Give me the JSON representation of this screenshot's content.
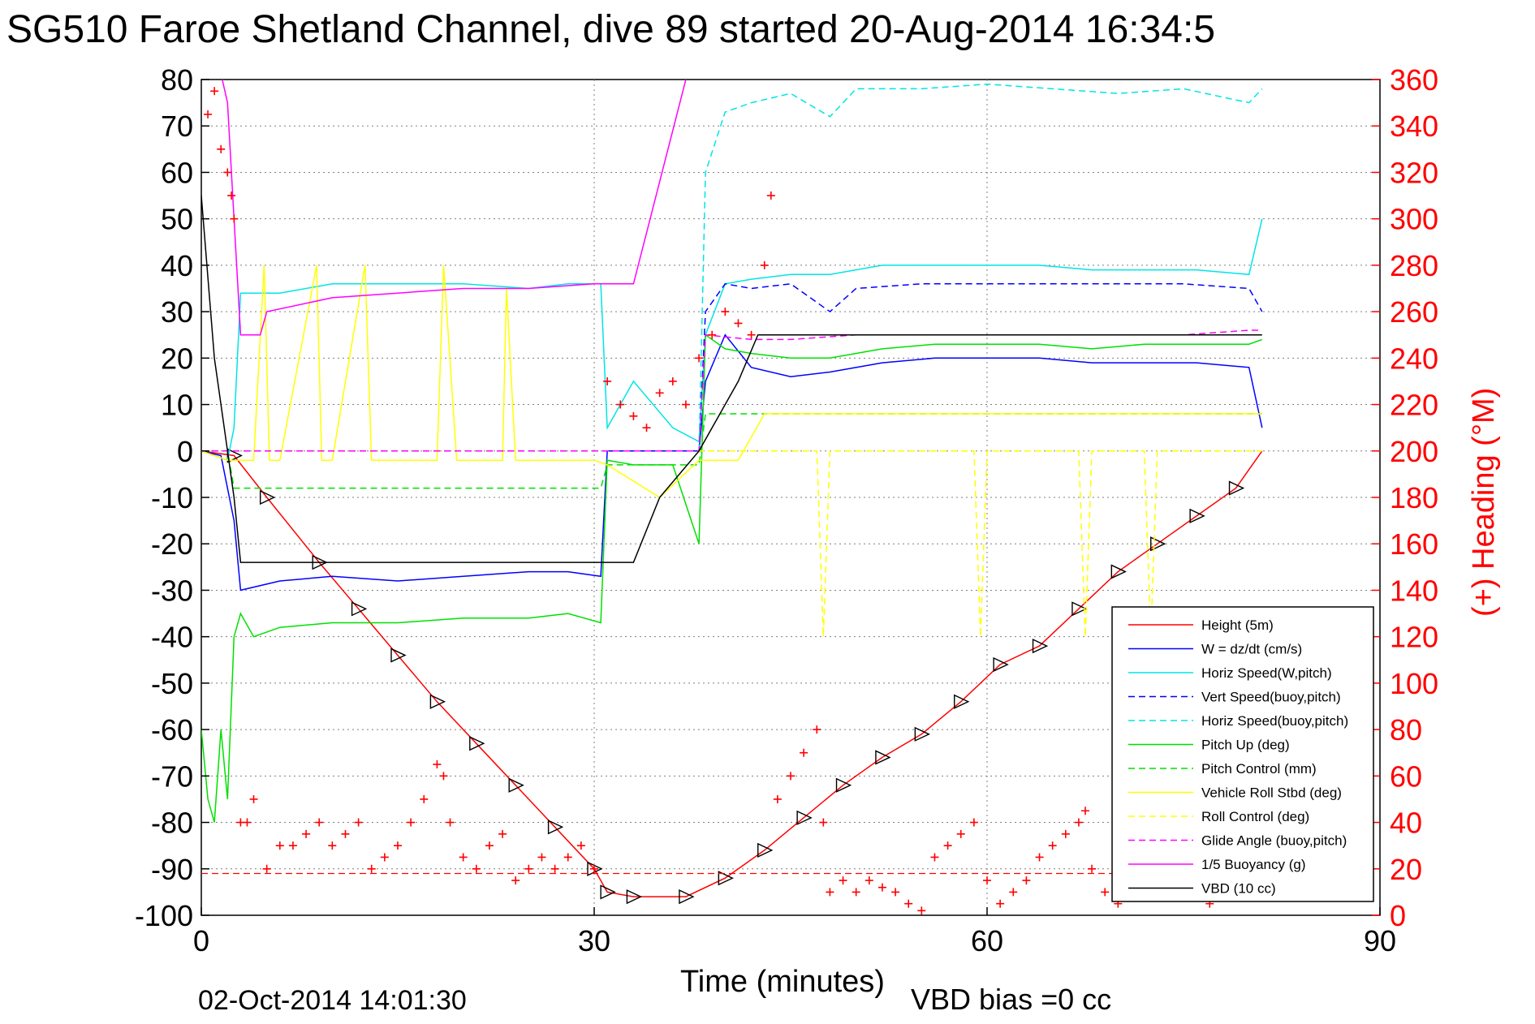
{
  "chart_data": {
    "type": "line",
    "title": "SG510 Faroe Shetland Channel, dive 89 started 20-Aug-2014 16:34:5",
    "xlabel": "Time (minutes)",
    "ylabel_right": "(+) Heading (°M)",
    "footer_date": "02-Oct-2014 14:01:30",
    "footer_vbd": "VBD bias =0 cc",
    "xlim": [
      0,
      90
    ],
    "ylim": [
      -100,
      80
    ],
    "ylim_right": [
      0,
      360
    ],
    "xticks": [
      "0",
      "30",
      "60",
      "90"
    ],
    "yticks": [
      "80",
      "70",
      "60",
      "50",
      "40",
      "30",
      "20",
      "10",
      "0",
      "-10",
      "-20",
      "-30",
      "-40",
      "-50",
      "-60",
      "-70",
      "-80",
      "-90",
      "-100"
    ],
    "yticks_right": [
      "360",
      "340",
      "320",
      "300",
      "280",
      "260",
      "240",
      "220",
      "200",
      "180",
      "160",
      "140",
      "120",
      "100",
      "80",
      "60",
      "40",
      "20",
      "0"
    ],
    "grid": true,
    "legend_position": "bottom-right",
    "series": [
      {
        "name": "Height (5m)",
        "color": "#ff0000",
        "style": "solid",
        "x": [
          0,
          2.5,
          5,
          9,
          12,
          15,
          18,
          21,
          24,
          27,
          30,
          31,
          33,
          37,
          40,
          43,
          46,
          49,
          52,
          55,
          58,
          61,
          64,
          67,
          70,
          73,
          76,
          79,
          81
        ],
        "y": [
          0,
          -1,
          -10,
          -24,
          -34,
          -44,
          -54,
          -63,
          -72,
          -81,
          -90,
          -95,
          -96,
          -96,
          -92,
          -86,
          -79,
          -72,
          -66,
          -61,
          -54,
          -46,
          -42,
          -34,
          -26,
          -20,
          -14,
          -8,
          0
        ]
      },
      {
        "name": "W = dz/dt (cm/s)",
        "color": "#0000ff",
        "style": "solid",
        "x": [
          0,
          1.5,
          2.5,
          3,
          6,
          10,
          15,
          20,
          25,
          28,
          30.5,
          31,
          33,
          36,
          38,
          38.5,
          40,
          42,
          45,
          48,
          52,
          56,
          60,
          64,
          68,
          72,
          76,
          80,
          81
        ],
        "y": [
          0,
          -1,
          -15,
          -30,
          -28,
          -27,
          -28,
          -27,
          -26,
          -26,
          -27,
          0,
          0,
          0,
          0,
          15,
          25,
          18,
          16,
          17,
          19,
          20,
          20,
          20,
          19,
          19,
          19,
          18,
          5
        ]
      },
      {
        "name": "Horiz Speed(W,pitch)",
        "color": "#00e5e5",
        "style": "solid",
        "x": [
          0,
          2,
          2.5,
          3,
          6,
          10,
          15,
          20,
          25,
          28,
          30.5,
          31,
          33,
          36,
          38,
          38.5,
          40,
          42,
          45,
          48,
          52,
          56,
          60,
          64,
          68,
          72,
          76,
          80,
          81
        ],
        "y": [
          0,
          -2,
          5,
          34,
          34,
          36,
          36,
          36,
          35,
          36,
          36,
          5,
          15,
          5,
          2,
          25,
          36,
          37,
          38,
          38,
          40,
          40,
          40,
          40,
          39,
          39,
          39,
          38,
          50
        ]
      },
      {
        "name": "Vert Speed(buoy,pitch)",
        "color": "#0000ff",
        "style": "dashed",
        "x": [
          38,
          38.5,
          40,
          42,
          45,
          48,
          50,
          55,
          60,
          65,
          70,
          75,
          80,
          81
        ],
        "y": [
          0,
          30,
          36,
          35,
          36,
          30,
          35,
          36,
          36,
          36,
          36,
          36,
          35,
          30
        ]
      },
      {
        "name": "Horiz Speed(buoy,pitch)",
        "color": "#00e5e5",
        "style": "dashed",
        "x": [
          38,
          38.5,
          40,
          42,
          45,
          48,
          50,
          55,
          60,
          65,
          70,
          75,
          80,
          81
        ],
        "y": [
          0,
          60,
          73,
          75,
          77,
          72,
          78,
          78,
          79,
          78,
          77,
          78,
          75,
          78
        ]
      },
      {
        "name": "Pitch Up (deg)",
        "color": "#00e000",
        "style": "solid",
        "x": [
          0,
          0.5,
          1,
          1.5,
          2,
          2.5,
          3,
          4,
          6,
          10,
          15,
          20,
          25,
          28,
          30.5,
          31,
          33,
          36,
          38,
          38.5,
          40,
          42,
          45,
          48,
          52,
          56,
          60,
          64,
          68,
          72,
          76,
          80,
          81
        ],
        "y": [
          -60,
          -75,
          -80,
          -60,
          -75,
          -40,
          -35,
          -40,
          -38,
          -37,
          -37,
          -36,
          -36,
          -35,
          -37,
          -2,
          -3,
          -3,
          -20,
          25,
          22,
          21,
          20,
          20,
          22,
          23,
          23,
          23,
          22,
          23,
          23,
          23,
          24
        ]
      },
      {
        "name": "Pitch Control (mm)",
        "color": "#00e000",
        "style": "dashed",
        "x": [
          0,
          2,
          2.5,
          30.5,
          31,
          38,
          38.5,
          81
        ],
        "y": [
          0,
          0,
          -8,
          -8,
          -3,
          -3,
          8,
          8
        ]
      },
      {
        "name": "Vehicle Roll Stbd (deg)",
        "color": "#ffff00",
        "style": "solid",
        "x": [
          0,
          2,
          4,
          4.8,
          5.2,
          6,
          8.8,
          9.2,
          10,
          12.5,
          13,
          14,
          18,
          18.5,
          19.5,
          23,
          23.3,
          24,
          30,
          31,
          35,
          38,
          41,
          43,
          45,
          48,
          52,
          56,
          60,
          64,
          68,
          72,
          76,
          80,
          81
        ],
        "y": [
          0,
          -2,
          -2,
          40,
          -2,
          -2,
          40,
          -2,
          -2,
          40,
          -2,
          -2,
          -2,
          40,
          -2,
          -2,
          35,
          -2,
          -2,
          -3,
          -10,
          -2,
          -2,
          8,
          8,
          8,
          8,
          8,
          8,
          8,
          8,
          8,
          8,
          8,
          8
        ]
      },
      {
        "name": "Roll Control (deg)",
        "color": "#ffff00",
        "style": "dashed",
        "x": [
          0,
          10,
          20,
          30,
          40,
          42,
          47,
          47.5,
          48,
          55,
          59,
          59.5,
          60,
          67,
          67.5,
          68,
          72,
          72.5,
          73,
          80,
          81
        ],
        "y": [
          0,
          0,
          0,
          0,
          0,
          0,
          0,
          -40,
          0,
          0,
          0,
          -40,
          0,
          0,
          -40,
          0,
          0,
          -40,
          0,
          0,
          0
        ]
      },
      {
        "name": "Glide Angle (buoy,pitch)",
        "color": "#ff00ff",
        "style": "dashed",
        "x": [
          0,
          10,
          20,
          30,
          38,
          38.5,
          42,
          45,
          50,
          55,
          60,
          65,
          70,
          75,
          80,
          81
        ],
        "y": [
          0,
          0,
          0,
          0,
          0,
          25,
          24,
          24,
          25,
          25,
          25,
          25,
          25,
          25,
          26,
          26
        ]
      },
      {
        "name": "1/5 Buoyancy (g)",
        "color": "#ff00ff",
        "style": "solid",
        "x": [
          1.6,
          2,
          2.5,
          3,
          4,
          4.5,
          5,
          10,
          15,
          20,
          25,
          30,
          33,
          37
        ],
        "y": [
          80,
          75,
          50,
          25,
          25,
          25,
          30,
          33,
          34,
          35,
          35,
          36,
          36,
          80
        ]
      },
      {
        "name": "VBD (10 cc)",
        "color": "#000000",
        "style": "solid",
        "x": [
          0,
          1,
          2,
          2.5,
          3,
          5,
          10,
          15,
          20,
          25,
          30,
          33,
          35,
          38,
          41,
          42.5,
          81
        ],
        "y": [
          55,
          20,
          0,
          -10,
          -24,
          -24,
          -24,
          -24,
          -24,
          -24,
          -24,
          -24,
          -10,
          0,
          15,
          25,
          25
        ]
      },
      {
        "name": "Heading",
        "color": "#ff0000",
        "style": "markers",
        "axis": "right",
        "x": [
          0.5,
          1,
          1.5,
          2,
          2.3,
          2.5,
          3,
          3.5,
          4,
          5,
          6,
          7,
          8,
          9,
          10,
          11,
          12,
          13,
          14,
          15,
          16,
          17,
          18,
          18.5,
          19,
          20,
          21,
          22,
          23,
          24,
          25,
          26,
          27,
          28,
          29,
          30,
          31,
          32,
          33,
          34,
          35,
          36,
          37,
          38,
          39,
          40,
          41,
          42,
          43,
          43.5,
          44,
          45,
          46,
          47,
          47.5,
          48,
          49,
          50,
          51,
          52,
          53,
          54,
          55,
          56,
          57,
          58,
          59,
          60,
          61,
          62,
          63,
          64,
          65,
          66,
          67,
          67.5,
          68,
          69,
          70,
          71,
          72,
          73,
          74,
          75,
          76,
          77,
          78
        ],
        "y": [
          345,
          355,
          330,
          320,
          310,
          300,
          40,
          40,
          50,
          20,
          30,
          30,
          35,
          40,
          30,
          35,
          40,
          20,
          25,
          30,
          40,
          50,
          65,
          60,
          40,
          25,
          20,
          30,
          35,
          15,
          20,
          25,
          20,
          25,
          30,
          20,
          230,
          220,
          215,
          210,
          225,
          230,
          220,
          240,
          250,
          260,
          255,
          250,
          280,
          310,
          50,
          60,
          70,
          80,
          40,
          10,
          15,
          10,
          15,
          12,
          10,
          5,
          2,
          25,
          30,
          35,
          40,
          15,
          5,
          10,
          15,
          25,
          30,
          35,
          40,
          45,
          20,
          10,
          5,
          15,
          20,
          10,
          15,
          12,
          8,
          5,
          10
        ]
      }
    ]
  }
}
